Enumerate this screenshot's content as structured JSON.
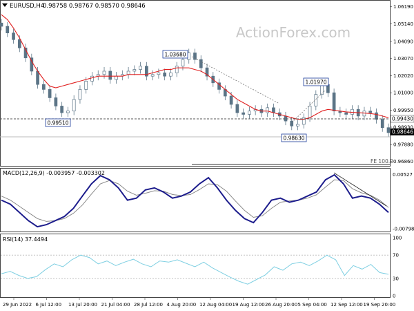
{
  "header": {
    "symbol_label": "EURUSD,H4",
    "ohlc": "0.98758 0.98767 0.98570 0.98646"
  },
  "watermark": "ActionForex.com",
  "colors": {
    "candle": "#5b7486",
    "ma": "#e02020",
    "level": "#555555",
    "macd": "#1c1c8c",
    "signal": "#8a8a8a",
    "rsi": "#7ecfe2",
    "price_tag": "#000000"
  },
  "chart_data": [
    {
      "type": "line",
      "name": "price",
      "ylim": [
        0.966,
        1.065
      ],
      "right_axis_ticks": [
        "1.06190",
        "1.05140",
        "1.04090",
        "1.03070",
        "1.02020",
        "1.01000",
        "0.99950",
        "0.98930",
        "0.97880",
        "0.96860"
      ],
      "tick_values": [
        1.0619,
        1.0514,
        1.0409,
        1.0307,
        1.0202,
        1.01,
        0.9995,
        0.9893,
        0.9788,
        0.9686
      ],
      "last_price_tag": "0.98646",
      "last_price": 0.98646,
      "horizontal_levels": [
        {
          "label": "0.99430",
          "value": 0.9943
        }
      ],
      "annotations": [
        {
          "label": "1.03680",
          "value": 1.0368
        },
        {
          "label": "0.99510",
          "value": 0.9951
        },
        {
          "label": "1.01970",
          "value": 1.0197
        },
        {
          "label": "0.98630",
          "value": 0.9863
        }
      ],
      "fe_label": "FE 100.0",
      "series": [
        {
          "values": [
            1.05,
            1.046,
            1.042,
            1.037,
            1.031,
            1.023,
            1.015,
            1.012,
            1.007,
            1.002,
            0.998,
            0.999,
            1.006,
            1.012,
            1.017,
            1.02,
            1.021,
            1.023,
            1.018,
            1.02,
            1.021,
            1.023,
            1.024,
            1.026,
            1.02,
            1.021,
            1.022,
            1.02,
            1.022,
            1.026,
            1.03,
            1.034,
            1.03,
            1.025,
            1.02,
            1.016,
            1.012,
            1.008,
            1.003,
            0.998,
            0.997,
            0.999,
            1.0,
            0.998,
            1.001,
            0.998,
            0.996,
            0.993,
            0.99,
            0.991,
            0.995,
            1.002,
            1.009,
            1.015,
            1.01,
            0.999,
            0.998,
            0.997,
            1.0,
            0.996,
            0.999,
            0.998,
            0.994,
            0.989,
            0.986
          ]
        },
        {
          "values": [
            1.057,
            1.054,
            1.049,
            1.043,
            1.036,
            1.029,
            1.023,
            1.018,
            1.014,
            1.013,
            1.014,
            1.015,
            1.016,
            1.017,
            1.018,
            1.019,
            1.02,
            1.02,
            1.02,
            1.02,
            1.02,
            1.021,
            1.021,
            1.021,
            1.021,
            1.022,
            1.023,
            1.024,
            1.024,
            1.025,
            1.025,
            1.025,
            1.024,
            1.023,
            1.021,
            1.018,
            1.015,
            1.012,
            1.009,
            1.006,
            1.004,
            1.002,
            1.0,
            0.999,
            0.999,
            0.998,
            0.997,
            0.996,
            0.995,
            0.994,
            0.994,
            0.995,
            0.997,
            0.999,
            1.0,
            0.9995,
            0.999,
            0.9985,
            0.9982,
            0.998,
            0.9978,
            0.9975,
            0.997,
            0.996,
            0.995
          ]
        }
      ]
    },
    {
      "type": "line",
      "title": "MACD(12,26,9) -0.003957 -0.003302",
      "ylim": [
        -0.0085,
        0.0057
      ],
      "right_axis_ticks": [
        "0.00527",
        "-0.007984"
      ],
      "tick_values": [
        0.00527,
        -0.007984
      ],
      "series": [
        {
          "values": [
            -0.001,
            -0.002,
            -0.004,
            -0.006,
            -0.0075,
            -0.007,
            -0.006,
            -0.005,
            -0.003,
            0.0,
            0.003,
            0.005,
            0.004,
            0.002,
            -0.001,
            -0.0005,
            0.0015,
            0.002,
            0.001,
            -0.0005,
            0.0,
            0.001,
            0.003,
            0.0045,
            0.002,
            -0.001,
            -0.0035,
            -0.0055,
            -0.0065,
            -0.004,
            -0.001,
            -0.0005,
            -0.0015,
            -0.001,
            0.0,
            0.001,
            0.004,
            0.0052,
            0.003,
            -0.0005,
            0.0,
            -0.0005,
            -0.002,
            -0.004
          ]
        },
        {
          "values": [
            0.0,
            -0.001,
            -0.0025,
            -0.004,
            -0.0055,
            -0.0062,
            -0.006,
            -0.0055,
            -0.0042,
            -0.0022,
            0.0005,
            0.003,
            0.0038,
            0.003,
            0.0012,
            0.0002,
            0.0007,
            0.0013,
            0.0012,
            0.0004,
            0.0001,
            0.0004,
            0.0016,
            0.003,
            0.0028,
            0.0012,
            -0.0012,
            -0.0035,
            -0.0052,
            -0.0048,
            -0.003,
            -0.0015,
            -0.0012,
            -0.001,
            -0.0005,
            0.0003,
            0.0022,
            0.004,
            0.0038,
            0.0018,
            0.0008,
            0.0002,
            -0.001,
            -0.0028
          ]
        }
      ]
    },
    {
      "type": "line",
      "title": "RSI(14) 37.4494",
      "ylim": [
        0,
        100
      ],
      "right_axis_ticks": [
        "100",
        "70",
        "30",
        "0"
      ],
      "tick_values": [
        100,
        70,
        30,
        0
      ],
      "series": [
        {
          "values": [
            38,
            42,
            35,
            30,
            33,
            45,
            55,
            50,
            62,
            70,
            66,
            55,
            60,
            52,
            58,
            63,
            55,
            50,
            60,
            58,
            62,
            56,
            50,
            58,
            48,
            40,
            32,
            25,
            20,
            28,
            36,
            50,
            44,
            55,
            58,
            52,
            60,
            70,
            62,
            35,
            52,
            46,
            54,
            40,
            37
          ]
        }
      ]
    }
  ],
  "x_axis": {
    "labels": [
      "29 Jun 2022",
      "6 Jul 12:00",
      "13 Jul 20:00",
      "21 Jul 04:00",
      "28 Jul 12:00",
      "4 Aug 20:00",
      "12 Aug 04:00",
      "19 Aug 12:00",
      "26 Aug 20:00",
      "5 Sep 04:00",
      "12 Sep 12:00",
      "19 Sep 20:00"
    ]
  }
}
